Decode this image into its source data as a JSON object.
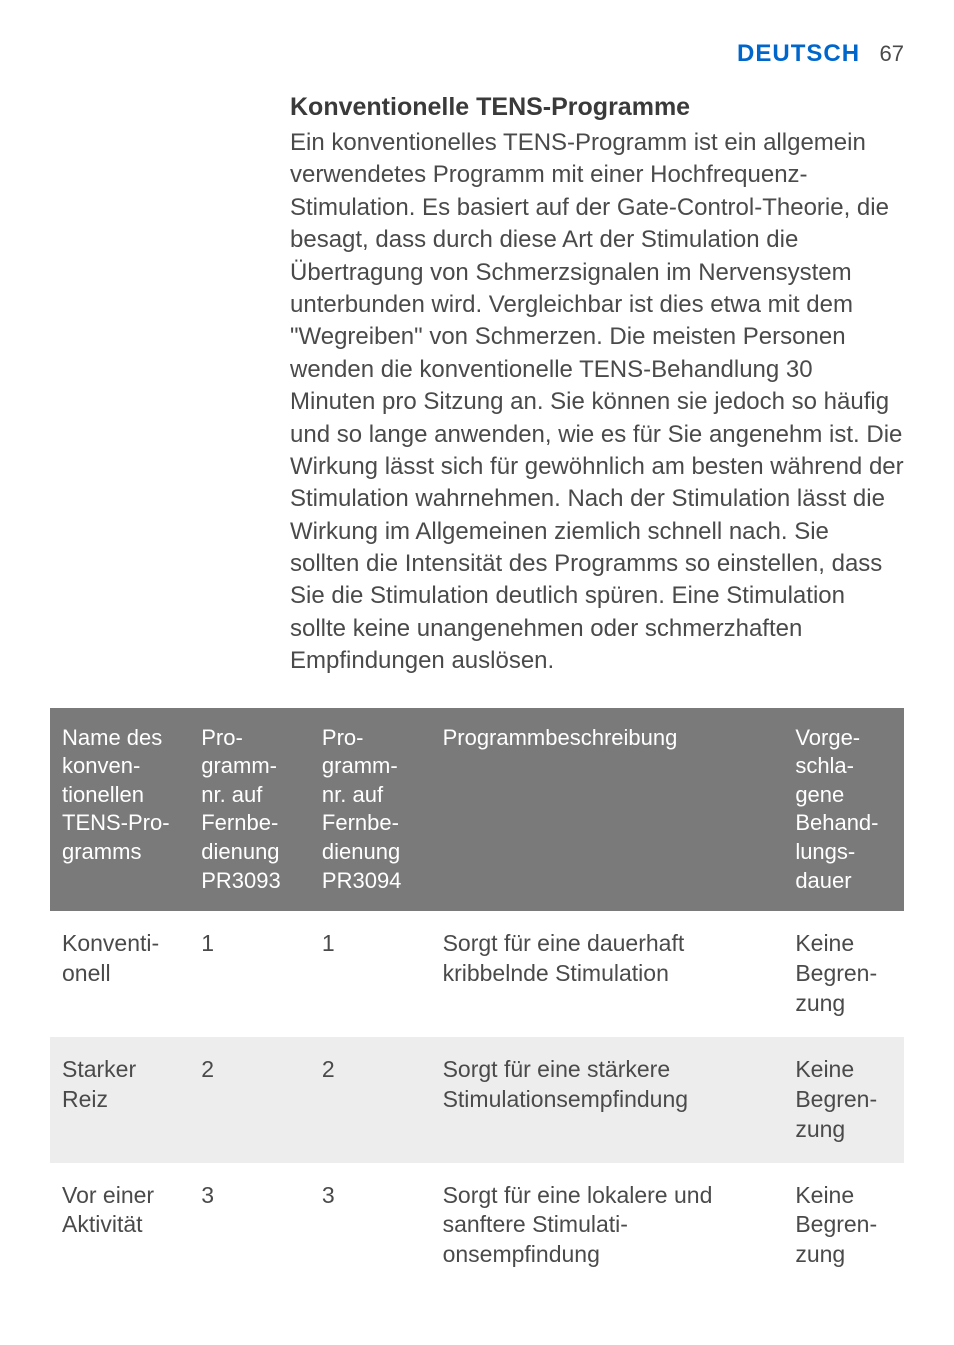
{
  "header": {
    "title": "DEUTSCH",
    "page_number": "67"
  },
  "section": {
    "title": "Konventionelle TENS-Programme",
    "body": "Ein konventionelles TENS-Programm ist ein allgemein verwendetes Programm mit einer Hochfrequenz-Stimulation. Es basiert auf der Gate-Control-Theorie, die besagt, dass durch diese Art der Stimulation die Übertragung von Schmerzsignalen im Nervensystem unterbunden wird. Vergleichbar ist dies etwa mit dem \"Wegreiben\" von Schmerzen. Die meisten Personen wenden die konventionelle TENS-Behandlung 30 Minuten pro Sitzung an. Sie können sie jedoch so häufig und so lange anwenden, wie es für Sie angenehm ist. Die Wirkung lässt sich für gewöhnlich am besten während der Stimulation wahrnehmen. Nach der Stimulation lässt die Wirkung im Allgemeinen ziemlich schnell nach. Sie sollten die Intensität des Programms so einstellen, dass Sie die Stimulation deutlich spüren. Eine Stimulation sollte keine unangenehmen oder schmerzhaften Empfindungen auslösen."
  },
  "table": {
    "columns": [
      "Name des konven-tionellen TENS-Pro-gramms",
      "Pro-gramm-nr. auf Fernbe-dienung PR3093",
      "Pro-gramm-nr. auf Fernbe-dienung PR3094",
      "Programmbeschreibung",
      "Vorge-schla-gene Behand-lungs-dauer"
    ],
    "rows": [
      {
        "name": "Konventi-onell",
        "pr3093": "1",
        "pr3094": "1",
        "desc": "Sorgt für eine dauerhaft kribbelnde Stimulation",
        "duration": "Keine Begren-zung"
      },
      {
        "name": "Starker Reiz",
        "pr3093": "2",
        "pr3094": "2",
        "desc": "Sorgt für eine stärkere Stimulationsempfindung",
        "duration": "Keine Begren-zung"
      },
      {
        "name": "Vor einer Aktivität",
        "pr3093": "3",
        "pr3094": "3",
        "desc": "Sorgt für eine lokalere und sanftere Stimulati-onsempfindung",
        "duration": "Keine Begren-zung"
      }
    ]
  },
  "styling": {
    "header_color": "#0066cc",
    "text_color": "#4a4a4a",
    "table_header_bg": "#7a7a7a",
    "table_header_text": "#ffffff",
    "table_row_alt_bg": "#ededed",
    "body_font_size": 24,
    "title_font_size": 25
  }
}
